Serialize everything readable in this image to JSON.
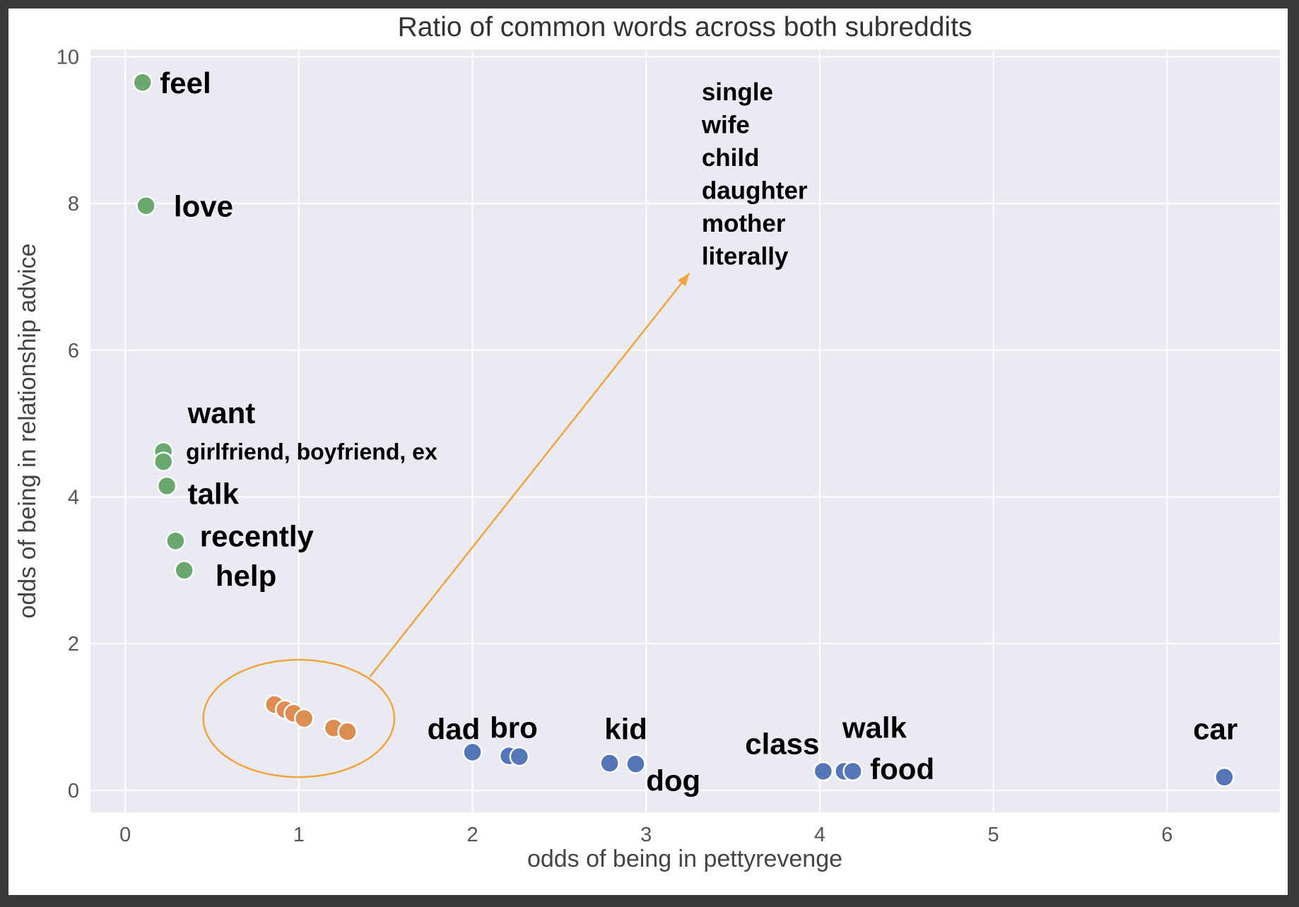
{
  "chart_data": {
    "type": "scatter",
    "title": "Ratio of common words across both subreddits",
    "xlabel": "odds of being in pettyrevenge",
    "ylabel": "odds of being in relationship advice",
    "xlim": [
      -0.2,
      6.65
    ],
    "ylim": [
      -0.3,
      10.1
    ],
    "xticks": [
      "0",
      "1",
      "2",
      "3",
      "4",
      "5",
      "6"
    ],
    "yticks": [
      "0",
      "2",
      "4",
      "6",
      "8",
      "10"
    ],
    "grid": true,
    "series": [
      {
        "color": "#6aa86f",
        "points": [
          {
            "x": 0.1,
            "y": 9.65
          },
          {
            "x": 0.12,
            "y": 7.97
          },
          {
            "x": 0.22,
            "y": 4.62
          },
          {
            "x": 0.22,
            "y": 4.48
          },
          {
            "x": 0.24,
            "y": 4.15
          },
          {
            "x": 0.29,
            "y": 3.4
          },
          {
            "x": 0.34,
            "y": 3.0
          }
        ]
      },
      {
        "color": "#dd8c52",
        "points": [
          {
            "x": 0.86,
            "y": 1.17
          },
          {
            "x": 0.92,
            "y": 1.1
          },
          {
            "x": 0.97,
            "y": 1.05
          },
          {
            "x": 1.03,
            "y": 0.98
          },
          {
            "x": 1.2,
            "y": 0.85
          },
          {
            "x": 1.28,
            "y": 0.8
          }
        ]
      },
      {
        "color": "#5476b8",
        "points": [
          {
            "x": 2.0,
            "y": 0.52
          },
          {
            "x": 2.21,
            "y": 0.47
          },
          {
            "x": 2.27,
            "y": 0.46
          },
          {
            "x": 2.79,
            "y": 0.37
          },
          {
            "x": 2.94,
            "y": 0.36
          },
          {
            "x": 4.02,
            "y": 0.26
          },
          {
            "x": 4.14,
            "y": 0.26
          },
          {
            "x": 4.19,
            "y": 0.26
          },
          {
            "x": 6.33,
            "y": 0.18
          }
        ]
      }
    ],
    "annotations": [
      {
        "text": "feel",
        "x": 0.2,
        "y": 9.65,
        "size": "big"
      },
      {
        "text": "love",
        "x": 0.28,
        "y": 7.97,
        "size": "big"
      },
      {
        "text": "want",
        "x": 0.36,
        "y": 5.15,
        "size": "big"
      },
      {
        "text": "girlfriend, boyfriend, ex",
        "x": 0.35,
        "y": 4.62,
        "size": "medium"
      },
      {
        "text": "talk",
        "x": 0.36,
        "y": 4.05,
        "size": "big"
      },
      {
        "text": "recently",
        "x": 0.43,
        "y": 3.47,
        "size": "big"
      },
      {
        "text": "help",
        "x": 0.52,
        "y": 2.93,
        "size": "big"
      },
      {
        "text": "dad",
        "x": 1.74,
        "y": 0.84,
        "size": "big"
      },
      {
        "text": "bro",
        "x": 2.1,
        "y": 0.86,
        "size": "big"
      },
      {
        "text": "kid",
        "x": 2.76,
        "y": 0.84,
        "size": "big"
      },
      {
        "text": "dog",
        "x": 3.0,
        "y": 0.14,
        "size": "big"
      },
      {
        "text": "class",
        "x": 3.57,
        "y": 0.64,
        "size": "big"
      },
      {
        "text": "walk",
        "x": 4.13,
        "y": 0.86,
        "size": "big"
      },
      {
        "text": "food",
        "x": 4.29,
        "y": 0.3,
        "size": "big"
      },
      {
        "text": "car",
        "x": 6.15,
        "y": 0.84,
        "size": "big"
      }
    ],
    "callout_list": {
      "x": 3.32,
      "y": 9.52,
      "items": [
        "single",
        "wife",
        "child",
        "daughter",
        "mother",
        "literally"
      ]
    },
    "ellipse": {
      "cx": 1.0,
      "cy": 0.98,
      "rx": 0.55,
      "ry": 0.8,
      "color": "#f0a43c"
    },
    "arrow": {
      "from": [
        1.41,
        1.55
      ],
      "to": [
        3.25,
        7.05
      ],
      "color": "#f0a43c"
    }
  }
}
